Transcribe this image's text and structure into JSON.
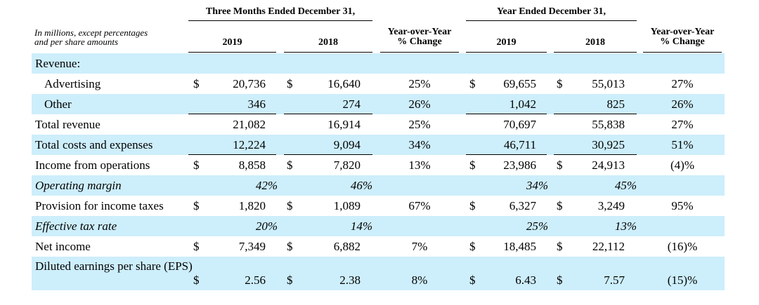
{
  "header": {
    "group_q": "Three Months Ended December 31,",
    "group_y": "Year Ended December 31,",
    "note_line1": "In millions, except percentages",
    "note_line2": "and per share amounts",
    "col_q2019": "2019",
    "col_q2018": "2018",
    "col_yoy_q_line1": "Year-over-Year",
    "col_yoy_q_line2": "% Change",
    "col_y2019": "2019",
    "col_y2018": "2018",
    "col_yoy_y_line1": "Year-over-Year",
    "col_yoy_y_line2": "% Change"
  },
  "rows": [
    {
      "label": "Revenue:",
      "d1": "",
      "q19": "",
      "d2": "",
      "q18": "",
      "yoy_q": "",
      "d3": "",
      "y19": "",
      "d4": "",
      "y18": "",
      "yoy_y": ""
    },
    {
      "label": "Advertising",
      "d1": "$",
      "q19": "20,736",
      "d2": "$",
      "q18": "16,640",
      "yoy_q": "25%",
      "d3": "$",
      "y19": "69,655",
      "d4": "$",
      "y18": "55,013",
      "yoy_y": "27%"
    },
    {
      "label": "Other",
      "d1": "",
      "q19": "346",
      "d2": "",
      "q18": "274",
      "yoy_q": "26%",
      "d3": "",
      "y19": "1,042",
      "d4": "",
      "y18": "825",
      "yoy_y": "26%"
    },
    {
      "label": "Total revenue",
      "d1": "",
      "q19": "21,082",
      "d2": "",
      "q18": "16,914",
      "yoy_q": "25%",
      "d3": "",
      "y19": "70,697",
      "d4": "",
      "y18": "55,838",
      "yoy_y": "27%"
    },
    {
      "label": "Total costs and expenses",
      "d1": "",
      "q19": "12,224",
      "d2": "",
      "q18": "9,094",
      "yoy_q": "34%",
      "d3": "",
      "y19": "46,711",
      "d4": "",
      "y18": "30,925",
      "yoy_y": "51%"
    },
    {
      "label": "Income from operations",
      "d1": "$",
      "q19": "8,858",
      "d2": "$",
      "q18": "7,820",
      "yoy_q": "13%",
      "d3": "$",
      "y19": "23,986",
      "d4": "$",
      "y18": "24,913",
      "yoy_y": "(4)%"
    },
    {
      "label": "Operating margin",
      "d1": "",
      "q19": "42%",
      "d2": "",
      "q18": "46%",
      "yoy_q": "",
      "d3": "",
      "y19": "34%",
      "d4": "",
      "y18": "45%",
      "yoy_y": ""
    },
    {
      "label": "Provision for income taxes",
      "d1": "$",
      "q19": "1,820",
      "d2": "$",
      "q18": "1,089",
      "yoy_q": "67%",
      "d3": "$",
      "y19": "6,327",
      "d4": "$",
      "y18": "3,249",
      "yoy_y": "95%"
    },
    {
      "label": "Effective tax rate",
      "d1": "",
      "q19": "20%",
      "d2": "",
      "q18": "14%",
      "yoy_q": "",
      "d3": "",
      "y19": "25%",
      "d4": "",
      "y18": "13%",
      "yoy_y": ""
    },
    {
      "label": "Net income",
      "d1": "$",
      "q19": "7,349",
      "d2": "$",
      "q18": "6,882",
      "yoy_q": "7%",
      "d3": "$",
      "y19": "18,485",
      "d4": "$",
      "y18": "22,112",
      "yoy_y": "(16)%"
    },
    {
      "label": "Diluted earnings per share (EPS)",
      "d1": "$",
      "q19": "2.56",
      "d2": "$",
      "q18": "2.38",
      "yoy_q": "8%",
      "d3": "$",
      "y19": "6.43",
      "d4": "$",
      "y18": "7.57",
      "yoy_y": "(15)%"
    }
  ],
  "colors": {
    "band": "#cdeefb"
  }
}
